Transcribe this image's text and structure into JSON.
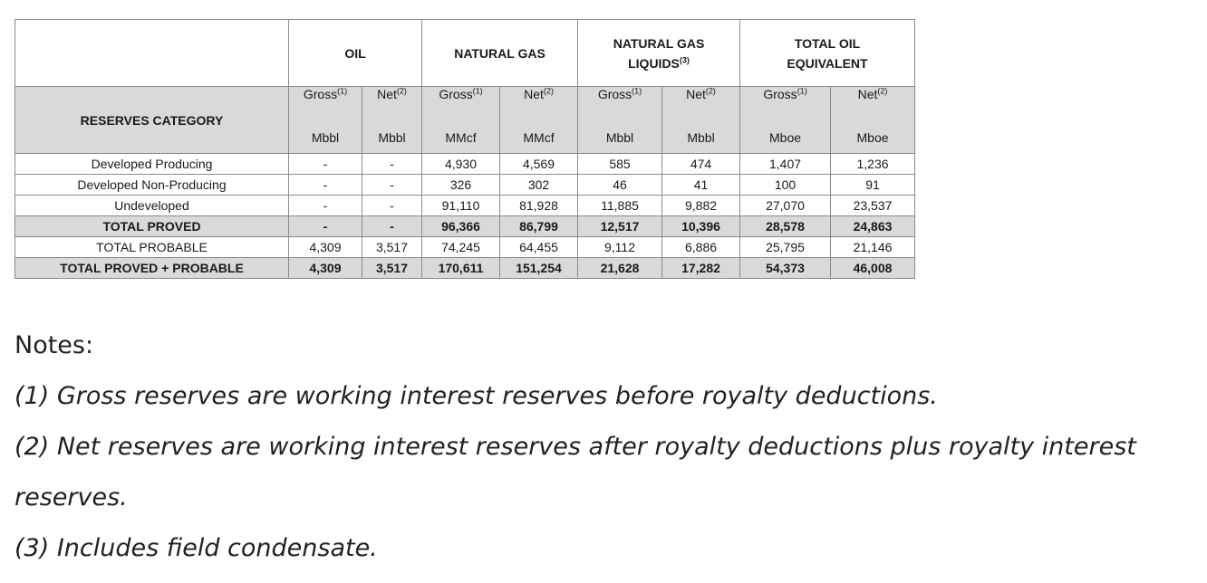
{
  "table": {
    "groups": [
      {
        "label": "OIL"
      },
      {
        "label": "NATURAL GAS"
      },
      {
        "label": "NATURAL GAS LIQUIDS",
        "sup": "(3)"
      },
      {
        "label": "TOTAL OIL EQUIVALENT"
      }
    ],
    "category_label": "RESERVES CATEGORY",
    "columns": [
      {
        "label": "Gross",
        "sup": "(1)",
        "unit": "Mbbl"
      },
      {
        "label": "Net",
        "sup": "(2)",
        "unit": "Mbbl"
      },
      {
        "label": "Gross",
        "sup": "(1)",
        "unit": "MMcf"
      },
      {
        "label": "Net",
        "sup": "(2)",
        "unit": "MMcf"
      },
      {
        "label": "Gross",
        "sup": "(1)",
        "unit": "Mbbl"
      },
      {
        "label": "Net",
        "sup": "(2)",
        "unit": "Mbbl"
      },
      {
        "label": "Gross",
        "sup": "(1)",
        "unit": "Mboe"
      },
      {
        "label": "Net",
        "sup": "(2)",
        "unit": "Mboe"
      }
    ],
    "rows": [
      {
        "category": "Developed Producing",
        "bold": false,
        "values": [
          "-",
          "-",
          "4,930",
          "4,569",
          "585",
          "474",
          "1,407",
          "1,236"
        ]
      },
      {
        "category": "Developed Non-Producing",
        "bold": false,
        "values": [
          "-",
          "-",
          "326",
          "302",
          "46",
          "41",
          "100",
          "91"
        ]
      },
      {
        "category": "Undeveloped",
        "bold": false,
        "values": [
          "-",
          "-",
          "91,110",
          "81,928",
          "11,885",
          "9,882",
          "27,070",
          "23,537"
        ]
      },
      {
        "category": "TOTAL PROVED",
        "bold": true,
        "values": [
          "-",
          "-",
          "96,366",
          "86,799",
          "12,517",
          "10,396",
          "28,578",
          "24,863"
        ]
      },
      {
        "category": "TOTAL PROBABLE",
        "bold": false,
        "values": [
          "4,309",
          "3,517",
          "74,245",
          "64,455",
          "9,112",
          "6,886",
          "25,795",
          "21,146"
        ]
      },
      {
        "category": "TOTAL PROVED + PROBABLE",
        "bold": true,
        "values": [
          "4,309",
          "3,517",
          "170,611",
          "151,254",
          "21,628",
          "17,282",
          "54,373",
          "46,008"
        ]
      }
    ]
  },
  "notes": {
    "title": "Notes:",
    "items": [
      "(1) Gross reserves are working interest reserves before royalty deductions.",
      "(2) Net reserves are working interest reserves after royalty deductions plus royalty interest reserves.",
      "(3) Includes field condensate."
    ]
  }
}
